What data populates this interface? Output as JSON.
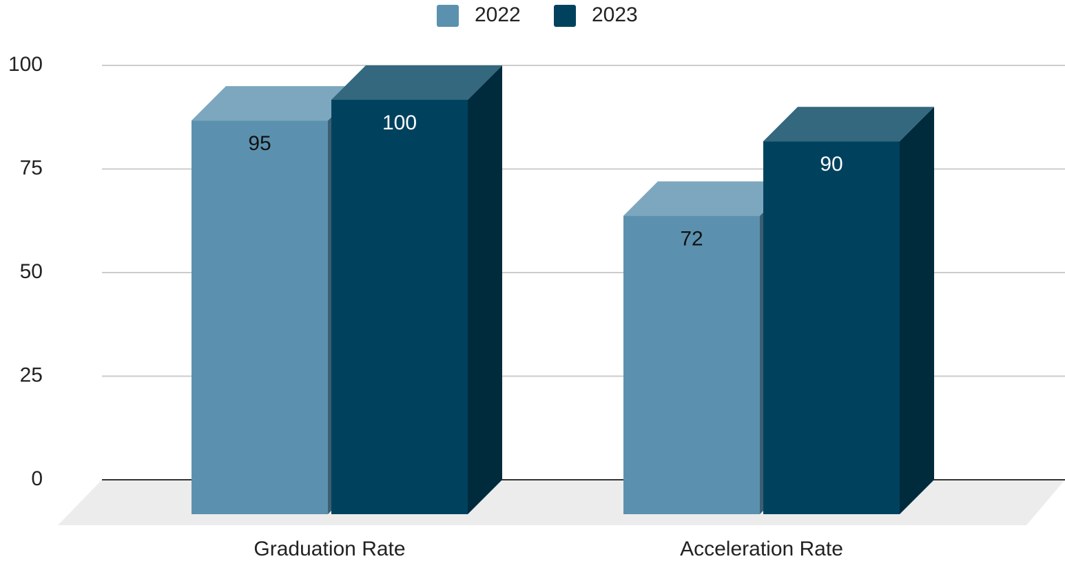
{
  "chart_data": {
    "type": "bar3d",
    "categories": [
      "Graduation Rate",
      "Acceleration Rate"
    ],
    "series": [
      {
        "name": "2022",
        "color": "#5b91ae",
        "values": [
          95,
          72
        ]
      },
      {
        "name": "2023",
        "color": "#00425e",
        "values": [
          100,
          90
        ]
      }
    ],
    "ylim": [
      0,
      100
    ],
    "yticks": [
      0,
      25,
      50,
      75,
      100
    ],
    "grid": true,
    "legend": "top"
  }
}
